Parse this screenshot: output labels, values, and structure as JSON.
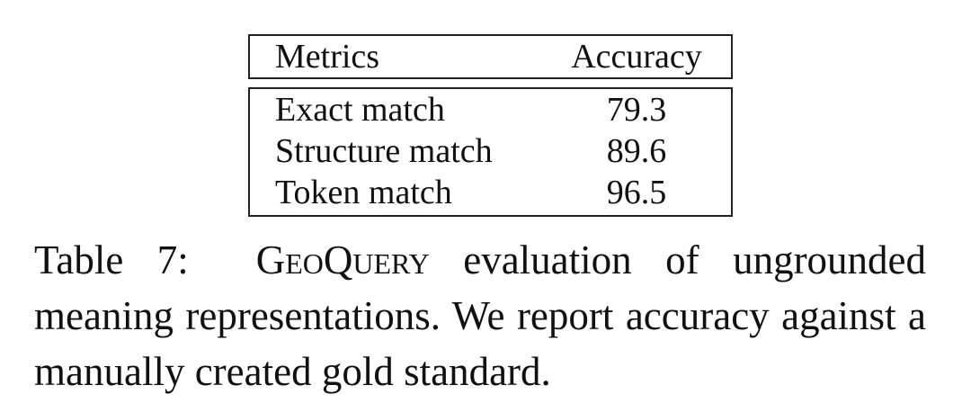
{
  "table": {
    "headers": [
      "Metrics",
      "Accuracy"
    ],
    "rows": [
      [
        "Exact match",
        "79.3"
      ],
      [
        "Structure match",
        "89.6"
      ],
      [
        "Token match",
        "96.5"
      ]
    ]
  },
  "caption": {
    "label": "Table 7:",
    "name": "GeoQuery",
    "text": "evaluation of ungrounded meaning representations.  We report accuracy against a manually created gold standard."
  }
}
